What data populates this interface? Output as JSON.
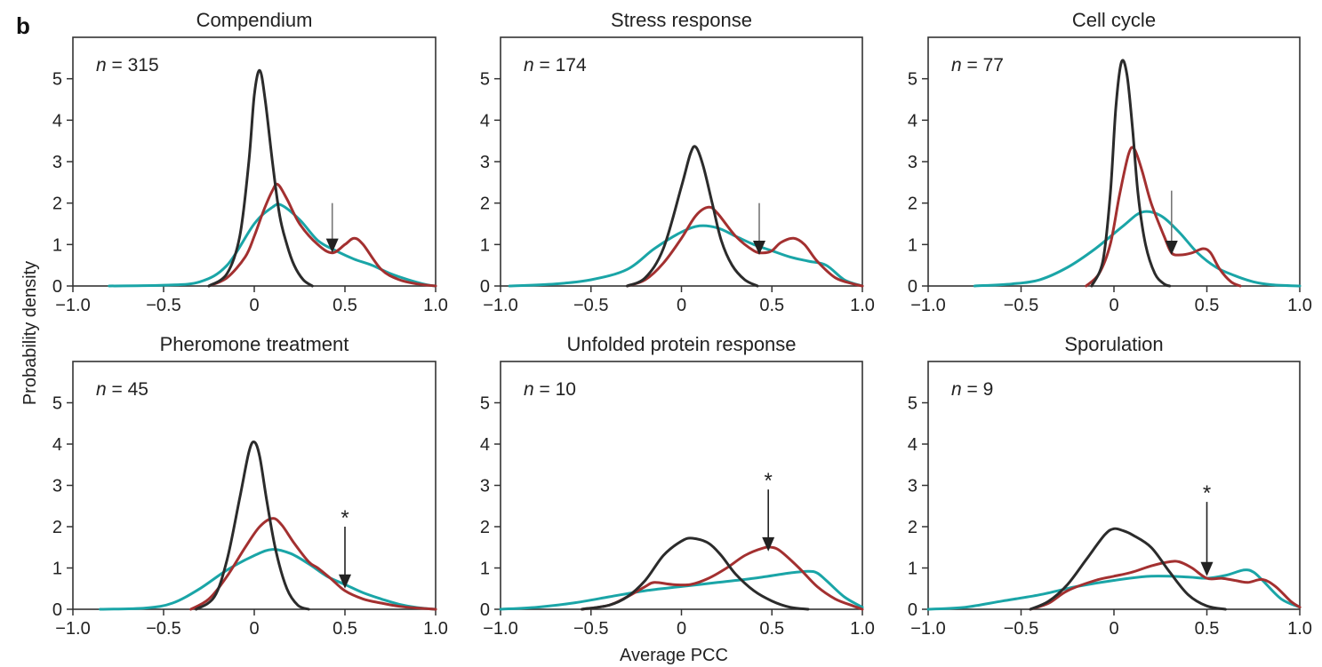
{
  "figure": {
    "panel_letter": "b",
    "ylabel": "Probability density",
    "xlabel": "Average PCC"
  },
  "colors": {
    "black": "#2b2b2b",
    "red": "#a33030",
    "teal": "#1aa5a7",
    "arrow_plain": "#777777",
    "arrow_star": "#222222"
  },
  "chart_data": [
    {
      "type": "line",
      "title": "Compendium",
      "n_label": "315",
      "xlim": [
        -1.0,
        1.0
      ],
      "ylim": [
        0,
        6
      ],
      "xticks": [
        "−1.0",
        "−0.5",
        "0",
        "0.5",
        "1.0"
      ],
      "yticks": [
        "0",
        "1",
        "2",
        "3",
        "4",
        "5"
      ],
      "grid": false,
      "arrow": {
        "x": 0.43,
        "y_top": 2.0,
        "y_tip": 0.8,
        "star": false
      },
      "series": [
        {
          "color": "black",
          "x": [
            -0.25,
            -0.15,
            -0.08,
            -0.03,
            0.0,
            0.03,
            0.06,
            0.1,
            0.14,
            0.18,
            0.22,
            0.27,
            0.32
          ],
          "y": [
            0,
            0.3,
            1.2,
            3.0,
            4.6,
            5.2,
            4.5,
            3.0,
            1.7,
            1.0,
            0.5,
            0.15,
            0
          ]
        },
        {
          "color": "red",
          "x": [
            -0.25,
            -0.15,
            -0.05,
            0.0,
            0.05,
            0.1,
            0.13,
            0.18,
            0.25,
            0.35,
            0.43,
            0.5,
            0.55,
            0.6,
            0.7,
            0.8,
            0.9,
            1.0
          ],
          "y": [
            0,
            0.2,
            0.7,
            1.2,
            1.8,
            2.3,
            2.45,
            2.1,
            1.5,
            1.0,
            0.8,
            1.0,
            1.15,
            1.0,
            0.4,
            0.15,
            0.05,
            0
          ]
        },
        {
          "color": "teal",
          "x": [
            -0.8,
            -0.5,
            -0.3,
            -0.15,
            0.0,
            0.1,
            0.15,
            0.25,
            0.35,
            0.45,
            0.55,
            0.65,
            0.75,
            0.85,
            0.95,
            1.0
          ],
          "y": [
            0,
            0.02,
            0.1,
            0.5,
            1.5,
            1.9,
            1.95,
            1.6,
            1.1,
            0.85,
            0.65,
            0.5,
            0.3,
            0.15,
            0.03,
            0
          ]
        }
      ]
    },
    {
      "type": "line",
      "title": "Stress response",
      "n_label": "174",
      "xlim": [
        -1.0,
        1.0
      ],
      "ylim": [
        0,
        6
      ],
      "xticks": [
        "−1.0",
        "−0.5",
        "0",
        "0.5",
        "1.0"
      ],
      "yticks": [
        "0",
        "1",
        "2",
        "3",
        "4",
        "5"
      ],
      "grid": false,
      "arrow": {
        "x": 0.43,
        "y_top": 2.0,
        "y_tip": 0.75,
        "star": false
      },
      "series": [
        {
          "color": "black",
          "x": [
            -0.3,
            -0.2,
            -0.1,
            0.0,
            0.05,
            0.08,
            0.12,
            0.17,
            0.22,
            0.28,
            0.35,
            0.42
          ],
          "y": [
            0,
            0.2,
            0.9,
            2.4,
            3.2,
            3.35,
            2.9,
            2.0,
            1.1,
            0.5,
            0.15,
            0
          ]
        },
        {
          "color": "red",
          "x": [
            -0.3,
            -0.2,
            -0.1,
            0.0,
            0.08,
            0.15,
            0.2,
            0.3,
            0.4,
            0.45,
            0.5,
            0.55,
            0.62,
            0.68,
            0.75,
            0.85,
            0.95,
            1.0
          ],
          "y": [
            0,
            0.15,
            0.55,
            1.15,
            1.7,
            1.9,
            1.75,
            1.2,
            0.85,
            0.8,
            0.85,
            1.05,
            1.15,
            1.0,
            0.6,
            0.2,
            0.05,
            0
          ]
        },
        {
          "color": "teal",
          "x": [
            -0.95,
            -0.7,
            -0.5,
            -0.3,
            -0.15,
            0.0,
            0.1,
            0.2,
            0.3,
            0.4,
            0.5,
            0.6,
            0.7,
            0.8,
            0.9,
            1.0
          ],
          "y": [
            0,
            0.05,
            0.15,
            0.4,
            0.9,
            1.3,
            1.45,
            1.4,
            1.2,
            1.0,
            0.85,
            0.7,
            0.6,
            0.5,
            0.15,
            0
          ]
        }
      ]
    },
    {
      "type": "line",
      "title": "Cell cycle",
      "n_label": "77",
      "xlim": [
        -1.0,
        1.0
      ],
      "ylim": [
        0,
        6
      ],
      "xticks": [
        "−1.0",
        "−0.5",
        "0",
        "0.5",
        "1.0"
      ],
      "yticks": [
        "0",
        "1",
        "2",
        "3",
        "4",
        "5"
      ],
      "grid": false,
      "arrow": {
        "x": 0.31,
        "y_top": 2.3,
        "y_tip": 0.75,
        "star": false
      },
      "series": [
        {
          "color": "black",
          "x": [
            -0.12,
            -0.06,
            -0.02,
            0.01,
            0.04,
            0.07,
            0.1,
            0.13,
            0.17,
            0.22,
            0.27,
            0.3
          ],
          "y": [
            0,
            0.6,
            2.2,
            4.3,
            5.4,
            5.1,
            3.8,
            2.2,
            1.0,
            0.3,
            0.05,
            0
          ]
        },
        {
          "color": "red",
          "x": [
            -0.15,
            -0.08,
            -0.02,
            0.03,
            0.08,
            0.11,
            0.15,
            0.2,
            0.27,
            0.31,
            0.36,
            0.42,
            0.48,
            0.52,
            0.57,
            0.63,
            0.68
          ],
          "y": [
            0,
            0.3,
            1.0,
            2.2,
            3.2,
            3.3,
            2.8,
            2.0,
            1.2,
            0.8,
            0.75,
            0.8,
            0.9,
            0.8,
            0.4,
            0.1,
            0
          ]
        },
        {
          "color": "teal",
          "x": [
            -0.75,
            -0.55,
            -0.4,
            -0.25,
            -0.1,
            0.05,
            0.15,
            0.25,
            0.35,
            0.45,
            0.55,
            0.65,
            0.75,
            0.85,
            1.0
          ],
          "y": [
            0,
            0.05,
            0.15,
            0.45,
            0.9,
            1.45,
            1.78,
            1.7,
            1.3,
            0.8,
            0.45,
            0.25,
            0.1,
            0.03,
            0
          ]
        }
      ]
    },
    {
      "type": "line",
      "title": "Pheromone treatment",
      "n_label": "45",
      "xlim": [
        -1.0,
        1.0
      ],
      "ylim": [
        0,
        6
      ],
      "xticks": [
        "−1.0",
        "−0.5",
        "0",
        "0.5",
        "1.0"
      ],
      "yticks": [
        "0",
        "1",
        "2",
        "3",
        "4",
        "5"
      ],
      "grid": false,
      "arrow": {
        "x": 0.5,
        "y_top": 2.0,
        "y_tip": 0.5,
        "star": true
      },
      "series": [
        {
          "color": "black",
          "x": [
            -0.32,
            -0.22,
            -0.15,
            -0.08,
            -0.03,
            0.0,
            0.03,
            0.07,
            0.12,
            0.18,
            0.24,
            0.3
          ],
          "y": [
            0,
            0.3,
            1.2,
            2.7,
            3.8,
            4.05,
            3.7,
            2.6,
            1.4,
            0.5,
            0.1,
            0
          ]
        },
        {
          "color": "red",
          "x": [
            -0.35,
            -0.25,
            -0.15,
            -0.05,
            0.03,
            0.1,
            0.15,
            0.22,
            0.3,
            0.35,
            0.42,
            0.5,
            0.6,
            0.7,
            0.8,
            0.9,
            1.0
          ],
          "y": [
            0,
            0.25,
            0.8,
            1.5,
            2.0,
            2.2,
            2.05,
            1.6,
            1.15,
            1.0,
            0.75,
            0.45,
            0.25,
            0.15,
            0.07,
            0.03,
            0
          ]
        },
        {
          "color": "teal",
          "x": [
            -0.85,
            -0.6,
            -0.45,
            -0.3,
            -0.15,
            0.0,
            0.1,
            0.2,
            0.3,
            0.4,
            0.5,
            0.6,
            0.7,
            0.8,
            0.9,
            1.0
          ],
          "y": [
            0,
            0.03,
            0.15,
            0.5,
            0.95,
            1.3,
            1.45,
            1.35,
            1.1,
            0.8,
            0.6,
            0.4,
            0.25,
            0.12,
            0.04,
            0
          ]
        }
      ]
    },
    {
      "type": "line",
      "title": "Unfolded protein response",
      "n_label": "10",
      "xlim": [
        -1.0,
        1.0
      ],
      "ylim": [
        0,
        6
      ],
      "xticks": [
        "−1.0",
        "−0.5",
        "0",
        "0.5",
        "1.0"
      ],
      "yticks": [
        "0",
        "1",
        "2",
        "3",
        "4",
        "5"
      ],
      "grid": false,
      "arrow": {
        "x": 0.48,
        "y_top": 2.9,
        "y_tip": 1.4,
        "star": true
      },
      "series": [
        {
          "color": "black",
          "x": [
            -0.55,
            -0.4,
            -0.3,
            -0.2,
            -0.1,
            0.0,
            0.06,
            0.15,
            0.22,
            0.3,
            0.4,
            0.5,
            0.6,
            0.7
          ],
          "y": [
            0,
            0.1,
            0.3,
            0.7,
            1.3,
            1.65,
            1.72,
            1.6,
            1.3,
            0.85,
            0.45,
            0.2,
            0.05,
            0
          ]
        },
        {
          "color": "red",
          "x": [
            -0.55,
            -0.4,
            -0.3,
            -0.2,
            -0.15,
            -0.05,
            0.05,
            0.15,
            0.25,
            0.35,
            0.45,
            0.5,
            0.55,
            0.65,
            0.75,
            0.85,
            0.95,
            1.0
          ],
          "y": [
            0,
            0.1,
            0.3,
            0.55,
            0.65,
            0.6,
            0.6,
            0.75,
            1.0,
            1.3,
            1.48,
            1.5,
            1.4,
            1.0,
            0.55,
            0.25,
            0.08,
            0
          ]
        },
        {
          "color": "teal",
          "x": [
            -1.0,
            -0.8,
            -0.6,
            -0.4,
            -0.2,
            0.0,
            0.2,
            0.4,
            0.6,
            0.7,
            0.75,
            0.8,
            0.9,
            1.0
          ],
          "y": [
            0,
            0.05,
            0.15,
            0.3,
            0.45,
            0.55,
            0.65,
            0.75,
            0.88,
            0.92,
            0.88,
            0.7,
            0.3,
            0.05
          ]
        }
      ]
    },
    {
      "type": "line",
      "title": "Sporulation",
      "n_label": "9",
      "xlim": [
        -1.0,
        1.0
      ],
      "ylim": [
        0,
        6
      ],
      "xticks": [
        "−1.0",
        "−0.5",
        "0",
        "0.5",
        "1.0"
      ],
      "yticks": [
        "0",
        "1",
        "2",
        "3",
        "4",
        "5"
      ],
      "grid": false,
      "arrow": {
        "x": 0.5,
        "y_top": 2.6,
        "y_tip": 0.8,
        "star": true
      },
      "series": [
        {
          "color": "black",
          "x": [
            -0.45,
            -0.35,
            -0.25,
            -0.15,
            -0.05,
            0.0,
            0.05,
            0.1,
            0.2,
            0.3,
            0.4,
            0.5,
            0.6
          ],
          "y": [
            0,
            0.2,
            0.6,
            1.2,
            1.8,
            1.95,
            1.9,
            1.8,
            1.5,
            0.9,
            0.35,
            0.08,
            0
          ]
        },
        {
          "color": "red",
          "x": [
            -0.45,
            -0.35,
            -0.25,
            -0.1,
            0.0,
            0.1,
            0.2,
            0.3,
            0.35,
            0.42,
            0.5,
            0.58,
            0.65,
            0.72,
            0.8,
            0.87,
            0.95,
            1.0
          ],
          "y": [
            0,
            0.15,
            0.45,
            0.7,
            0.8,
            0.9,
            1.05,
            1.15,
            1.15,
            1.0,
            0.75,
            0.75,
            0.7,
            0.65,
            0.72,
            0.55,
            0.2,
            0.05
          ]
        },
        {
          "color": "teal",
          "x": [
            -1.0,
            -0.8,
            -0.6,
            -0.4,
            -0.2,
            0.0,
            0.2,
            0.4,
            0.5,
            0.6,
            0.7,
            0.75,
            0.8,
            0.9,
            1.0
          ],
          "y": [
            0,
            0.05,
            0.2,
            0.35,
            0.55,
            0.7,
            0.8,
            0.78,
            0.75,
            0.82,
            0.95,
            0.9,
            0.7,
            0.25,
            0.05
          ]
        }
      ]
    }
  ]
}
